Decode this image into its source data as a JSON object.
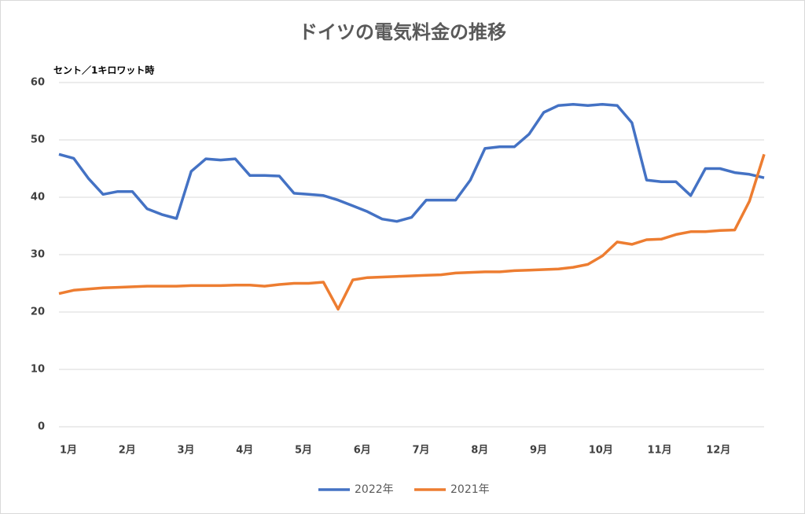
{
  "chart_data": {
    "type": "line",
    "title": "ドイツの電気料金の推移",
    "y_label": "セント／1キロワット時",
    "categories": [
      "1月",
      null,
      null,
      null,
      "2月",
      null,
      null,
      null,
      "3月",
      null,
      null,
      null,
      "4月",
      null,
      null,
      null,
      "5月",
      null,
      null,
      null,
      "6月",
      null,
      null,
      null,
      "7月",
      null,
      null,
      null,
      "8月",
      null,
      null,
      null,
      "9月",
      null,
      null,
      null,
      "10月",
      null,
      null,
      null,
      "11月",
      null,
      null,
      null,
      "12月",
      null,
      null,
      null,
      null
    ],
    "series": [
      {
        "name": "2022年",
        "color": "#4472c4",
        "values": [
          47.5,
          46.8,
          43.3,
          40.5,
          41,
          41,
          38,
          37,
          36.3,
          44.5,
          46.7,
          46.5,
          46.7,
          43.8,
          43.8,
          43.7,
          40.7,
          40.5,
          40.3,
          39.5,
          38.5,
          37.5,
          36.2,
          35.8,
          36.5,
          39.5,
          39.5,
          39.5,
          43,
          48.5,
          48.8,
          48.8,
          51,
          54.8,
          56,
          56.2,
          56,
          56.2,
          56,
          53,
          43,
          42.7,
          42.7,
          40.3,
          45,
          45,
          44.3,
          44,
          43.4
        ]
      },
      {
        "name": "2021年",
        "color": "#ed7d31",
        "values": [
          23.2,
          23.8,
          24,
          24.2,
          24.3,
          24.4,
          24.5,
          24.5,
          24.5,
          24.6,
          24.6,
          24.6,
          24.7,
          24.7,
          24.5,
          24.8,
          25,
          25,
          25.2,
          20.5,
          25.6,
          26,
          26.1,
          26.2,
          26.3,
          26.4,
          26.5,
          26.8,
          26.9,
          27,
          27,
          27.2,
          27.3,
          27.4,
          27.5,
          27.8,
          28.3,
          29.8,
          32.2,
          31.8,
          32.6,
          32.7,
          33.5,
          34,
          34,
          34.2,
          34.3,
          39.3,
          47.5
        ]
      }
    ],
    "ylim": [
      0,
      60
    ],
    "yticks": [
      0,
      10,
      20,
      30,
      40,
      50,
      60
    ],
    "grid": true,
    "legend": "bottom"
  }
}
